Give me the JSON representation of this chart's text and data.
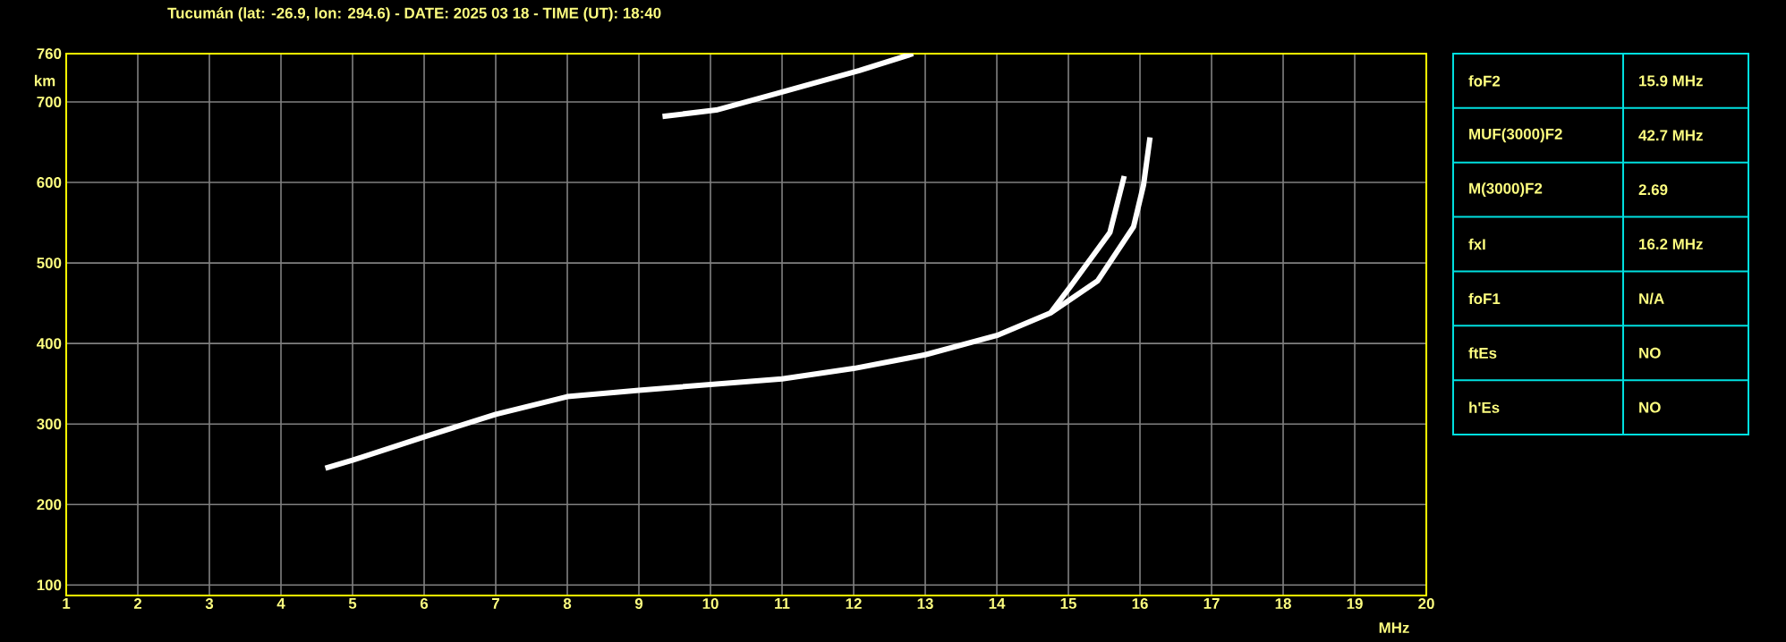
{
  "chart_data": [
    {
      "type": "line",
      "title": "Tucumán (lat: -26.9, lon: 294.6) - DATE: 2025 03 18 - TIME (UT): 18:40",
      "xlabel": "MHz",
      "ylabel": "km",
      "xlim": [
        1,
        20
      ],
      "ylim": [
        87,
        760
      ],
      "xticks": [
        1,
        2,
        3,
        4,
        5,
        6,
        7,
        8,
        9,
        10,
        11,
        12,
        13,
        14,
        15,
        16,
        17,
        18,
        19,
        20
      ],
      "yticks": [
        100,
        200,
        300,
        400,
        500,
        600,
        700,
        760
      ],
      "grid": true,
      "marker": "none",
      "line_style": "solid",
      "series": [
        {
          "color": "#ffffff",
          "x": [
            4.62,
            5.0,
            6.0,
            7.0,
            8.0,
            9.0,
            10.0,
            11.0,
            12.0,
            13.0,
            14.0,
            14.75,
            15.03,
            15.58,
            15.78
          ],
          "values": [
            245,
            255,
            284,
            312,
            334,
            342,
            349,
            356,
            369,
            386,
            410,
            438,
            471,
            538,
            608
          ]
        },
        {
          "color": "#ffffff",
          "x": [
            14.75,
            15.41,
            15.91,
            16.05,
            16.14
          ],
          "values": [
            438,
            478,
            545,
            597,
            656
          ]
        },
        {
          "color": "#ffffff",
          "x": [
            9.33,
            10.08,
            10.9,
            12.08,
            12.58,
            12.83
          ],
          "values": [
            682,
            690,
            710,
            739,
            753,
            760
          ]
        }
      ]
    },
    {
      "type": "other",
      "annotations": [
        "foF2",
        "15.9 MHz",
        "MUF(3000)F2",
        "42.7 MHz",
        "M(3000)F2",
        "2.69",
        "fxI",
        "16.2 MHz",
        "foF1",
        "N/A",
        "ftEs",
        "NO",
        "h'Es",
        "NO"
      ]
    }
  ]
}
